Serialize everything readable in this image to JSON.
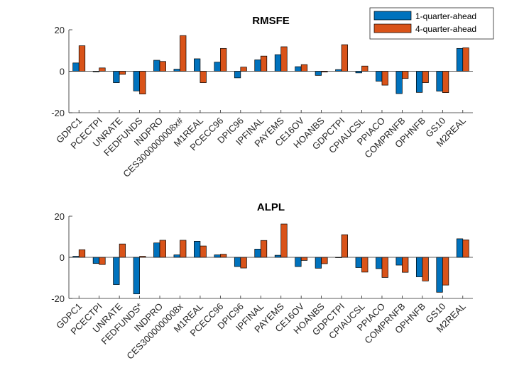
{
  "colors": {
    "series1": "#0072BD",
    "series2": "#D95319",
    "axis": "#262626",
    "grid_zero": "#262626"
  },
  "legend": {
    "entries": [
      "1-quarter-ahead",
      "4-quarter-ahead"
    ],
    "placement": "top-right"
  },
  "chart_data": [
    {
      "type": "bar",
      "title": "RMSFE",
      "ylim": [
        -20,
        20
      ],
      "yticks": [
        -20,
        0,
        20
      ],
      "categories": [
        "GDPC1",
        "PCECTPI",
        "UNRATE",
        "FEDFUNDS",
        "INDPRO",
        "CES3000000008x#",
        "M1REAL",
        "PCECC96",
        "DPIC96",
        "IPFINAL",
        "PAYEMS",
        "CE16OV",
        "HOANBS",
        "GDPCTPI",
        "CPIAUCSL",
        "PPIACO",
        "COMPRNFB",
        "OPHNFB",
        "GS10",
        "M2REAL"
      ],
      "series": [
        {
          "name": "1-quarter-ahead",
          "values": [
            4,
            -0.3,
            -5.5,
            -9.5,
            5.3,
            1,
            6,
            4.4,
            -3.2,
            5.5,
            8,
            2.2,
            -2,
            0.8,
            -0.8,
            -4.8,
            -10.8,
            -10.2,
            -9.6,
            11
          ]
        },
        {
          "name": "4-quarter-ahead",
          "values": [
            12.3,
            1.6,
            -1.5,
            -11,
            4.7,
            17.2,
            -5.5,
            11,
            2,
            7.3,
            11.8,
            3.2,
            -0.4,
            12.8,
            2.5,
            -6.7,
            -3.5,
            -5.5,
            -10.3,
            11.3
          ]
        }
      ]
    },
    {
      "type": "bar",
      "title": "ALPL",
      "ylim": [
        -20,
        20
      ],
      "yticks": [
        -20,
        0,
        20
      ],
      "categories": [
        "GDPC1",
        "PCECTPI",
        "UNRATE",
        "FEDFUNDS*",
        "INDPRO",
        "CES3000000008x",
        "M1REAL",
        "PCECC96",
        "DPIC96",
        "IPFINAL",
        "PAYEMS",
        "CE16OV",
        "HOANBS",
        "GDPCTPI",
        "CPIAUCSL",
        "PPIACO",
        "COMPRNFB",
        "OPHNFB",
        "GS10",
        "M2REAL"
      ],
      "series": [
        {
          "name": "1-quarter-ahead",
          "values": [
            0.5,
            -3,
            -13.3,
            -17.8,
            7,
            1.2,
            7.8,
            1.2,
            -4.5,
            4,
            1,
            -4.5,
            -5.3,
            -0.2,
            -5,
            -5.5,
            -3.8,
            -9.5,
            -17,
            9
          ]
        },
        {
          "name": "4-quarter-ahead",
          "values": [
            3.7,
            -3.5,
            6.5,
            0.5,
            8.3,
            8.3,
            5.5,
            1.5,
            -5.2,
            8.2,
            16.2,
            -1.5,
            -3.1,
            11,
            -7.2,
            -9.8,
            -7.3,
            -11.5,
            -13.5,
            8.5
          ]
        }
      ]
    }
  ]
}
